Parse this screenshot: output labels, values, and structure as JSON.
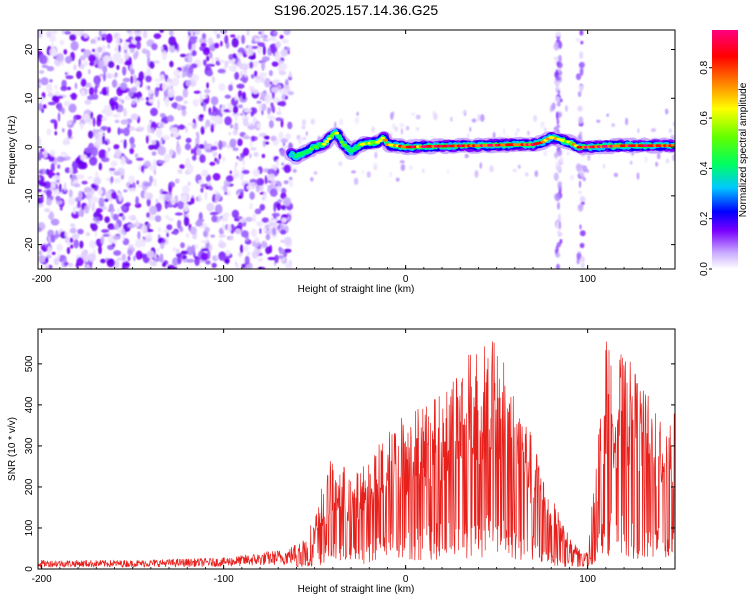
{
  "title": "S196.2025.157.14.36.G25",
  "chart_data": [
    {
      "type": "heatmap",
      "xlabel": "Height of straight line (km)",
      "ylabel": "Frequency (Hz)",
      "xlim": [
        -202,
        148
      ],
      "ylim": [
        -25,
        24
      ],
      "x_ticks": [
        -200,
        -100,
        0,
        100
      ],
      "y_ticks": [
        -20,
        -10,
        0,
        10,
        20
      ],
      "colorbar": {
        "label": "Normalized spectral amplitude",
        "range": [
          0,
          0.95
        ],
        "ticks": [
          0.0,
          0.2,
          0.4,
          0.6,
          0.8
        ],
        "colors": [
          "#ffffff",
          "#c8a8ff",
          "#7a00ff",
          "#0000ff",
          "#00c8ff",
          "#00ff60",
          "#60ff00",
          "#ffff00",
          "#ff8000",
          "#ff0000",
          "#ff0080"
        ]
      },
      "noise_region_x": [
        -202,
        -63
      ],
      "signal_track": {
        "x": [
          -63,
          -60,
          -55,
          -50,
          -45,
          -40,
          -38,
          -35,
          -30,
          -25,
          -20,
          -15,
          -12,
          -10,
          -5,
          0,
          20,
          40,
          60,
          70,
          75,
          80,
          85,
          90,
          95,
          100,
          120,
          148
        ],
        "y": [
          -1.5,
          -2,
          -1,
          0,
          0.5,
          2.5,
          3,
          1,
          -1,
          0.5,
          0.8,
          1,
          2,
          0.5,
          0.3,
          0,
          0.2,
          0.3,
          0.5,
          0.5,
          1,
          2,
          1.5,
          1,
          0,
          0,
          0.3,
          0.3
        ],
        "amplitude": [
          0.3,
          0.35,
          0.4,
          0.45,
          0.5,
          0.55,
          0.5,
          0.45,
          0.45,
          0.5,
          0.55,
          0.6,
          0.65,
          0.7,
          0.75,
          0.8,
          0.85,
          0.85,
          0.85,
          0.9,
          0.85,
          0.7,
          0.6,
          0.6,
          0.75,
          0.85,
          0.85,
          0.8
        ]
      },
      "vertical_bands_x": [
        84,
        96
      ]
    },
    {
      "type": "line",
      "xlabel": "Height of straight line (km)",
      "ylabel": "SNR (10 * v/v)",
      "xlim": [
        -202,
        148
      ],
      "ylim": [
        0,
        585
      ],
      "x_ticks": [
        -200,
        -100,
        0,
        100
      ],
      "y_ticks": [
        0,
        100,
        200,
        300,
        400,
        500
      ],
      "series": [
        {
          "color": "#e8201c",
          "envelope_x": [
            -202,
            -150,
            -100,
            -80,
            -65,
            -55,
            -50,
            -45,
            -40,
            -35,
            -30,
            -25,
            -20,
            -10,
            0,
            10,
            20,
            30,
            40,
            45,
            50,
            55,
            60,
            65,
            70,
            75,
            80,
            85,
            90,
            95,
            100,
            105,
            110,
            115,
            120,
            125,
            130,
            135,
            140,
            148
          ],
          "envelope_y": [
            22,
            22,
            28,
            40,
            50,
            80,
            130,
            220,
            280,
            260,
            230,
            240,
            280,
            340,
            390,
            420,
            460,
            500,
            560,
            585,
            540,
            500,
            430,
            380,
            320,
            250,
            180,
            130,
            80,
            50,
            40,
            300,
            560,
            540,
            520,
            500,
            440,
            420,
            400,
            380
          ]
        }
      ]
    }
  ]
}
